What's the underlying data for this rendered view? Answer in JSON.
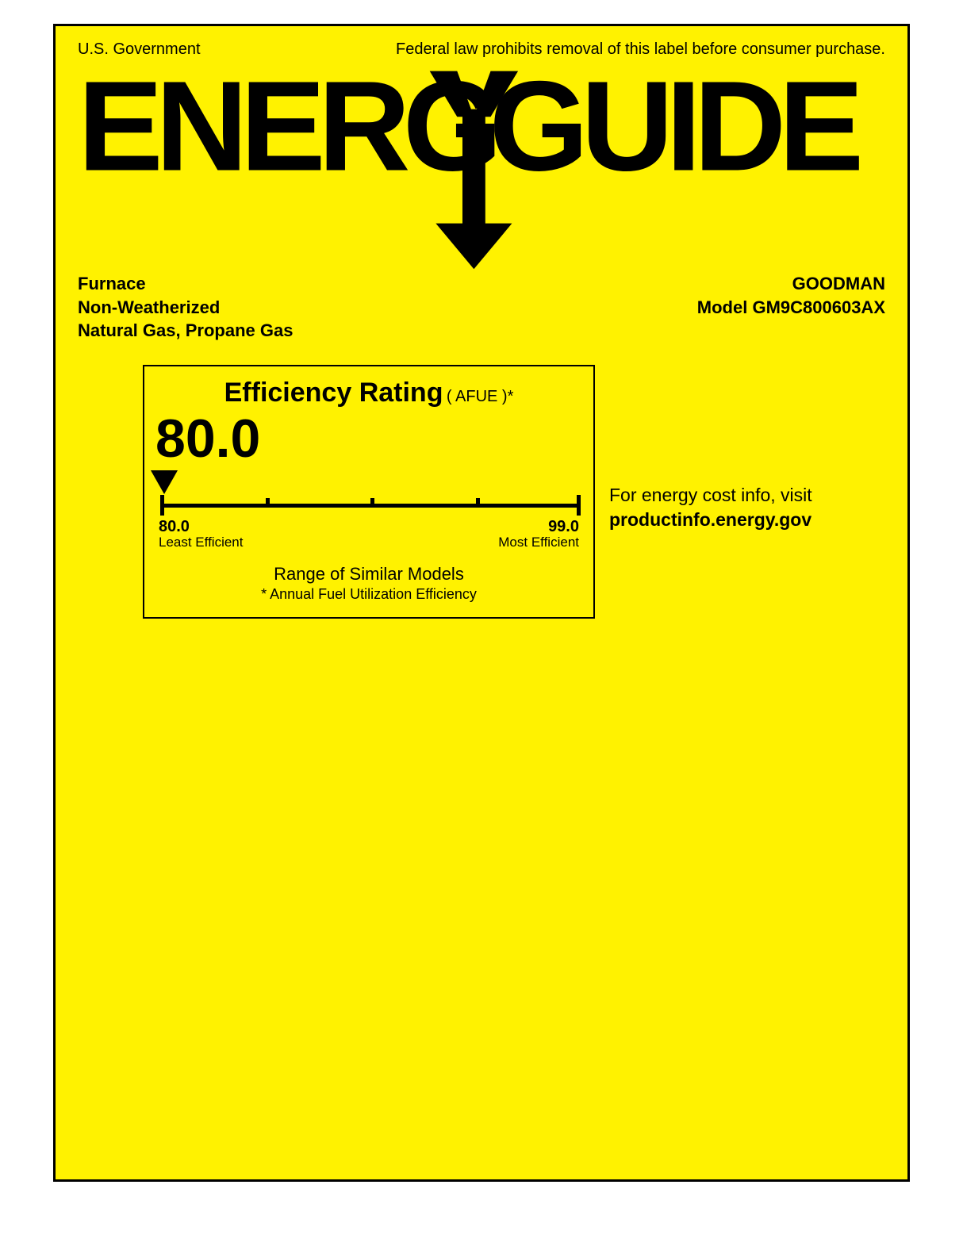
{
  "colors": {
    "background": "#fff200",
    "border": "#000000",
    "text": "#000000"
  },
  "top": {
    "left": "U.S. Government",
    "right": "Federal law prohibits removal of this label before consumer purchase."
  },
  "logo": {
    "text": "ENERGYGUIDE"
  },
  "product": {
    "line1": "Furnace",
    "line2": "Non-Weatherized",
    "line3": "Natural Gas, Propane Gas",
    "brand": "GOODMAN",
    "model": "Model GM9C800603AX"
  },
  "efficiency": {
    "title": "Efficiency Rating",
    "subtitle": "( AFUE )*",
    "value": "80.0",
    "scale": {
      "min_value": 80.0,
      "max_value": 99.0,
      "min_label": "80.0",
      "max_label": "99.0",
      "min_desc": "Least Efficient",
      "max_desc": "Most Efficient",
      "tick_count_inner": 3,
      "pointer_value": 80.0,
      "track_color": "#000000"
    },
    "range_text": "Range of Similar Models",
    "footnote": "* Annual Fuel Utilization Efficiency"
  },
  "costInfo": {
    "line1": "For energy cost info, visit",
    "url": "productinfo.energy.gov"
  }
}
